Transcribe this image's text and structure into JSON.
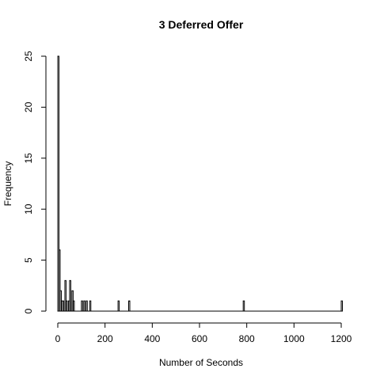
{
  "chart_data": {
    "type": "bar",
    "title": "3 Deferred Offer",
    "xlabel": "Number of Seconds",
    "ylabel": "Frequency",
    "bin_width": 5,
    "xlim": [
      0,
      1210
    ],
    "ylim": [
      0,
      25
    ],
    "x_ticks": [
      "0",
      "200",
      "400",
      "600",
      "800",
      "1000",
      "1200"
    ],
    "y_ticks": [
      "0",
      "5",
      "10",
      "15",
      "20",
      "25"
    ],
    "bins": [
      {
        "x": 0,
        "y": 25
      },
      {
        "x": 5,
        "y": 6
      },
      {
        "x": 10,
        "y": 2
      },
      {
        "x": 15,
        "y": 1
      },
      {
        "x": 20,
        "y": 1
      },
      {
        "x": 30,
        "y": 3
      },
      {
        "x": 35,
        "y": 1
      },
      {
        "x": 45,
        "y": 1
      },
      {
        "x": 50,
        "y": 3
      },
      {
        "x": 60,
        "y": 2
      },
      {
        "x": 65,
        "y": 1
      },
      {
        "x": 100,
        "y": 1
      },
      {
        "x": 110,
        "y": 1
      },
      {
        "x": 120,
        "y": 1
      },
      {
        "x": 135,
        "y": 1
      },
      {
        "x": 255,
        "y": 1
      },
      {
        "x": 300,
        "y": 1
      },
      {
        "x": 785,
        "y": 1
      },
      {
        "x": 1200,
        "y": 1
      }
    ]
  }
}
